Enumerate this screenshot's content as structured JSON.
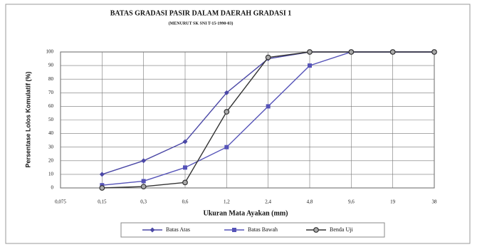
{
  "chart_data": {
    "type": "line",
    "title": "BATAS GRADASI PASIR DALAM DAERAH GRADASI  1",
    "subtitle": "(MENURUT SK SNI T-15-1990-03)",
    "x_label": "Ukuran Mata Ayakan (mm)",
    "y_label": "Persentase Lolos Komulatif (%)",
    "categories": [
      "0,075",
      "0,15",
      "0,3",
      "0,6",
      "1,2",
      "2,4",
      "4,8",
      "9,6",
      "19",
      "38"
    ],
    "series": [
      {
        "name": "Batas Atas",
        "color": "#4b48a6",
        "marker": "diamond",
        "values": [
          null,
          10,
          20,
          34,
          70,
          95,
          100,
          100,
          100,
          100
        ]
      },
      {
        "name": "Batas Bawah",
        "color": "#5553b8",
        "marker": "square",
        "values": [
          null,
          2,
          5,
          15,
          30,
          60,
          90,
          100,
          100,
          100
        ]
      },
      {
        "name": "Benda Uji",
        "color": "#333333",
        "marker": "circle",
        "values": [
          null,
          0,
          1,
          4,
          56,
          96,
          100,
          100,
          100,
          100
        ]
      }
    ],
    "ylim": [
      0,
      100
    ],
    "yticks": [
      0,
      10,
      20,
      30,
      40,
      50,
      60,
      70,
      80,
      90,
      100
    ],
    "grid": true,
    "legend": "bottom"
  }
}
